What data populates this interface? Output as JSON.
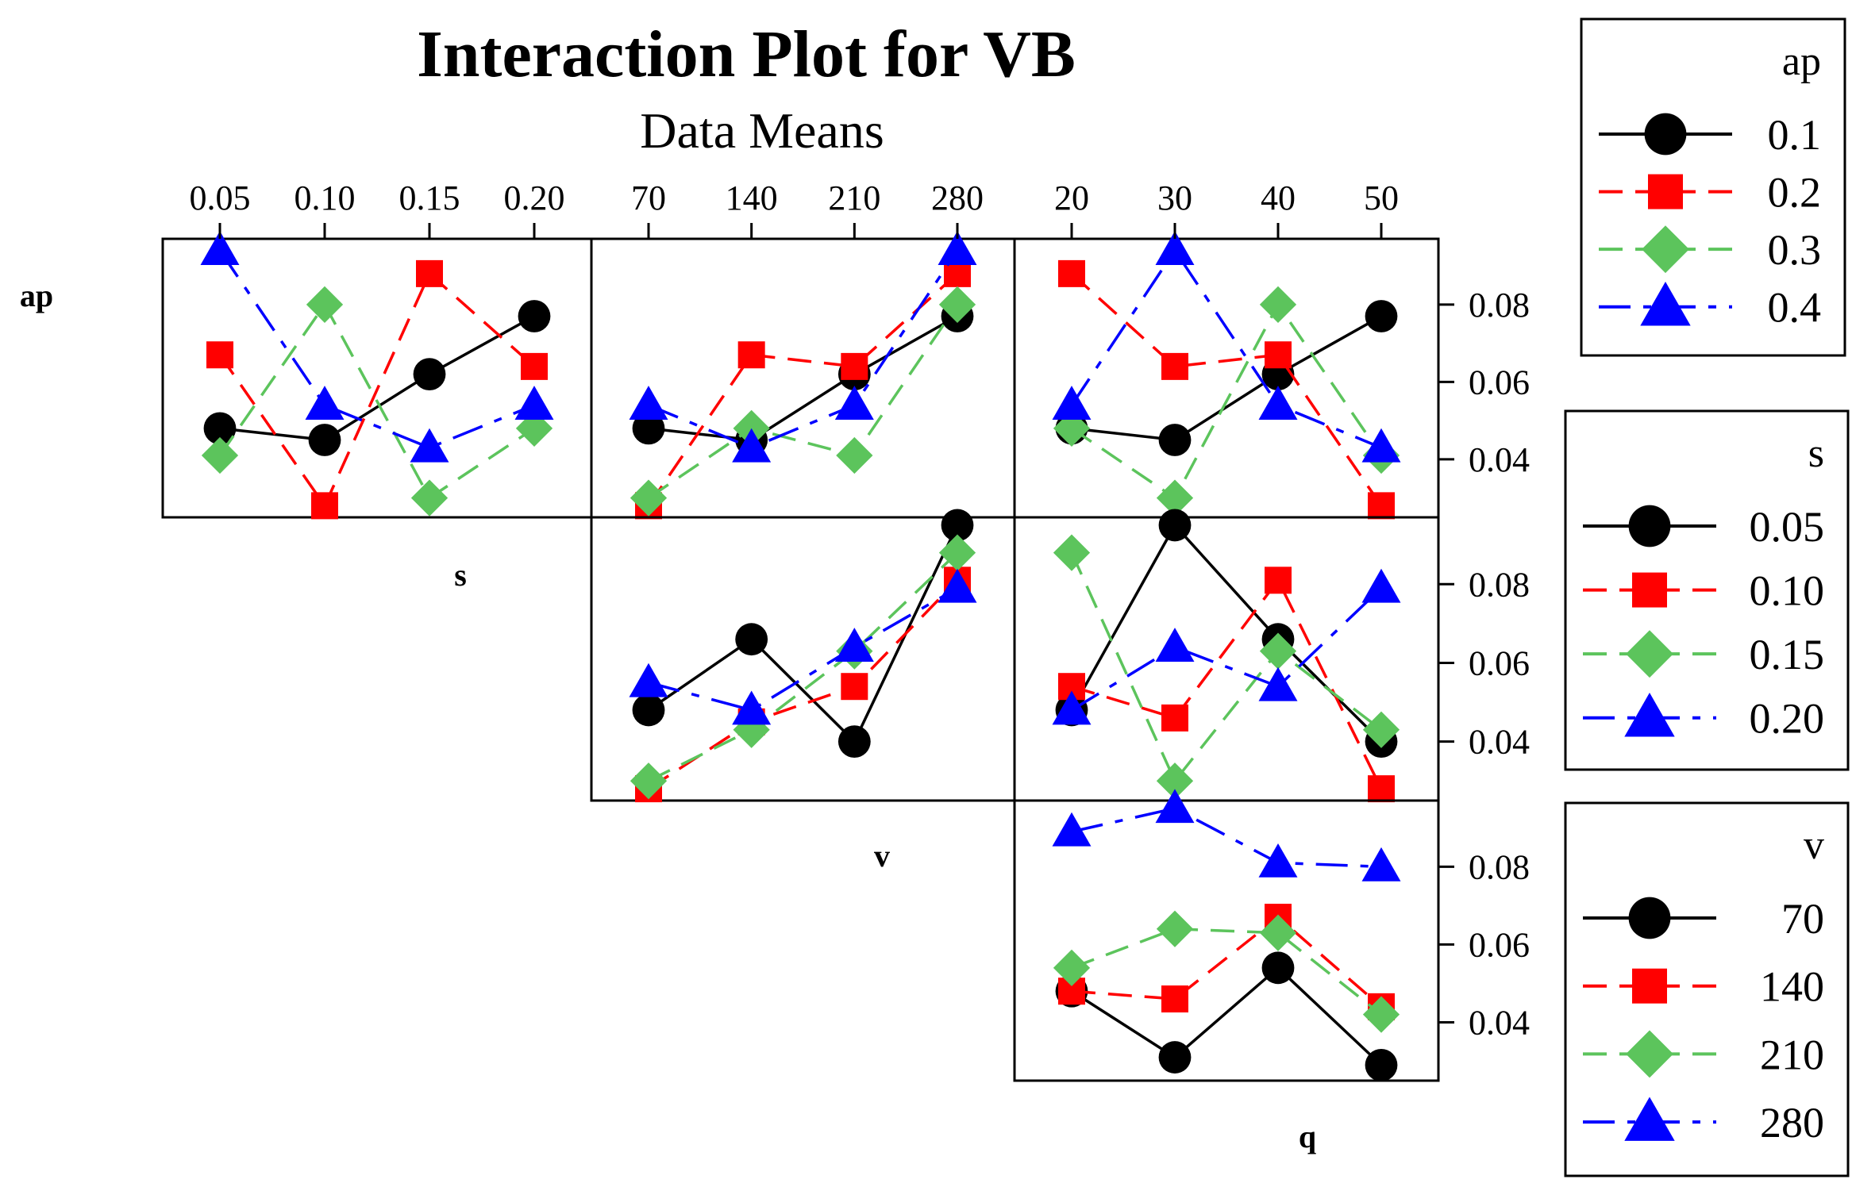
{
  "chart_data": {
    "type": "line",
    "title": "Interaction Plot for VB",
    "subtitle": "Data Means",
    "y_ticks": [
      "0.04",
      "0.06",
      "0.08"
    ],
    "y_tick_values": [
      0.04,
      0.06,
      0.08
    ],
    "panel_ylim": [
      0.025,
      0.097
    ],
    "factors": {
      "s": {
        "label": "s",
        "levels": [
          "0.05",
          "0.10",
          "0.15",
          "0.20"
        ]
      },
      "v": {
        "label": "v",
        "levels": [
          "70",
          "140",
          "210",
          "280"
        ]
      },
      "q": {
        "label": "q",
        "levels": [
          "20",
          "30",
          "40",
          "50"
        ]
      }
    },
    "row_labels": [
      "ap",
      "s",
      "v",
      "q"
    ],
    "styles": [
      {
        "color": "#000000",
        "marker": "circle",
        "dash": "solid"
      },
      {
        "color": "#ff0000",
        "marker": "square",
        "dash": "dashed"
      },
      {
        "color": "#5cc45c",
        "marker": "diamond",
        "dash": "dashed"
      },
      {
        "color": "#0000ff",
        "marker": "triangle",
        "dash": "dashdot"
      }
    ],
    "legends": [
      {
        "title": "ap",
        "entries": [
          "0.1",
          "0.2",
          "0.3",
          "0.4"
        ]
      },
      {
        "title": "s",
        "entries": [
          "0.05",
          "0.10",
          "0.15",
          "0.20"
        ]
      },
      {
        "title": "v",
        "entries": [
          "70",
          "140",
          "210",
          "280"
        ]
      }
    ],
    "panels": [
      {
        "row_factor": "ap",
        "x_factor": "s",
        "series": [
          {
            "name": "0.1",
            "values": [
              0.048,
              0.045,
              0.062,
              0.077
            ]
          },
          {
            "name": "0.2",
            "values": [
              0.067,
              0.028,
              0.088,
              0.064
            ]
          },
          {
            "name": "0.3",
            "values": [
              0.041,
              0.08,
              0.03,
              0.048
            ]
          },
          {
            "name": "0.4",
            "values": [
              0.094,
              0.054,
              0.043,
              0.054
            ]
          }
        ]
      },
      {
        "row_factor": "ap",
        "x_factor": "v",
        "series": [
          {
            "name": "0.1",
            "values": [
              0.048,
              0.045,
              0.062,
              0.077
            ]
          },
          {
            "name": "0.2",
            "values": [
              0.028,
              0.067,
              0.064,
              0.088
            ]
          },
          {
            "name": "0.3",
            "values": [
              0.03,
              0.048,
              0.041,
              0.08
            ]
          },
          {
            "name": "0.4",
            "values": [
              0.054,
              0.043,
              0.054,
              0.094
            ]
          }
        ]
      },
      {
        "row_factor": "ap",
        "x_factor": "q",
        "series": [
          {
            "name": "0.1",
            "values": [
              0.048,
              0.045,
              0.062,
              0.077
            ]
          },
          {
            "name": "0.2",
            "values": [
              0.088,
              0.064,
              0.067,
              0.028
            ]
          },
          {
            "name": "0.3",
            "values": [
              0.048,
              0.03,
              0.08,
              0.041
            ]
          },
          {
            "name": "0.4",
            "values": [
              0.054,
              0.094,
              0.054,
              0.043
            ]
          }
        ]
      },
      {
        "row_factor": "s",
        "x_factor": "v",
        "series": [
          {
            "name": "0.05",
            "values": [
              0.048,
              0.066,
              0.04,
              0.095
            ]
          },
          {
            "name": "0.10",
            "values": [
              0.028,
              0.045,
              0.054,
              0.081
            ]
          },
          {
            "name": "0.15",
            "values": [
              0.03,
              0.043,
              0.063,
              0.088
            ]
          },
          {
            "name": "0.20",
            "values": [
              0.055,
              0.048,
              0.064,
              0.079
            ]
          }
        ]
      },
      {
        "row_factor": "s",
        "x_factor": "q",
        "series": [
          {
            "name": "0.05",
            "values": [
              0.048,
              0.095,
              0.066,
              0.04
            ]
          },
          {
            "name": "0.10",
            "values": [
              0.054,
              0.046,
              0.081,
              0.028
            ]
          },
          {
            "name": "0.15",
            "values": [
              0.088,
              0.03,
              0.063,
              0.043
            ]
          },
          {
            "name": "0.20",
            "values": [
              0.048,
              0.064,
              0.054,
              0.079
            ]
          }
        ]
      },
      {
        "row_factor": "v",
        "x_factor": "q",
        "series": [
          {
            "name": "70",
            "values": [
              0.048,
              0.031,
              0.054,
              0.029
            ]
          },
          {
            "name": "140",
            "values": [
              0.048,
              0.046,
              0.067,
              0.044
            ]
          },
          {
            "name": "210",
            "values": [
              0.054,
              0.064,
              0.063,
              0.042
            ]
          },
          {
            "name": "280",
            "values": [
              0.089,
              0.095,
              0.081,
              0.08
            ]
          }
        ]
      }
    ]
  }
}
